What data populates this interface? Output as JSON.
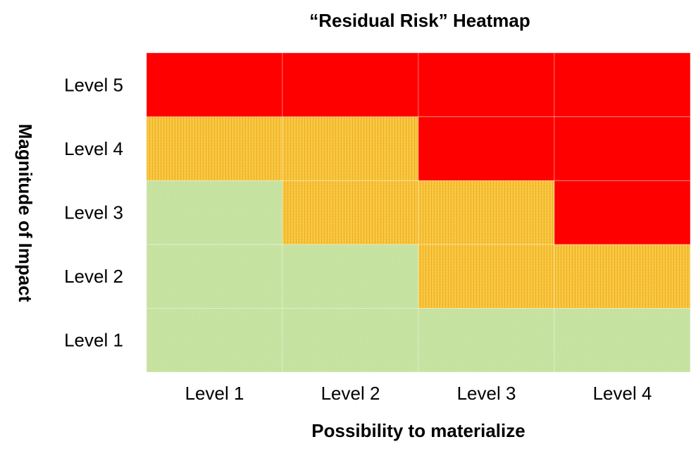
{
  "chart_data": {
    "type": "heatmap",
    "title": "“Residual Risk” Heatmap",
    "xlabel": "Possibility to materialize",
    "ylabel": "Magnitude of Impact",
    "x_categories": [
      "Level 1",
      "Level 2",
      "Level 3",
      "Level 4"
    ],
    "y_categories": [
      "Level 1",
      "Level 2",
      "Level 3",
      "Level 4",
      "Level 5"
    ],
    "color_levels": {
      "green": "#c6e3a0",
      "amber": "#f6c13a",
      "red": "#ff0000"
    },
    "cells": [
      [
        "green",
        "green",
        "green",
        "green"
      ],
      [
        "green",
        "green",
        "amber",
        "amber"
      ],
      [
        "green",
        "amber",
        "amber",
        "red"
      ],
      [
        "amber",
        "amber",
        "red",
        "red"
      ],
      [
        "red",
        "red",
        "red",
        "red"
      ]
    ],
    "legend": false,
    "grid": false
  }
}
